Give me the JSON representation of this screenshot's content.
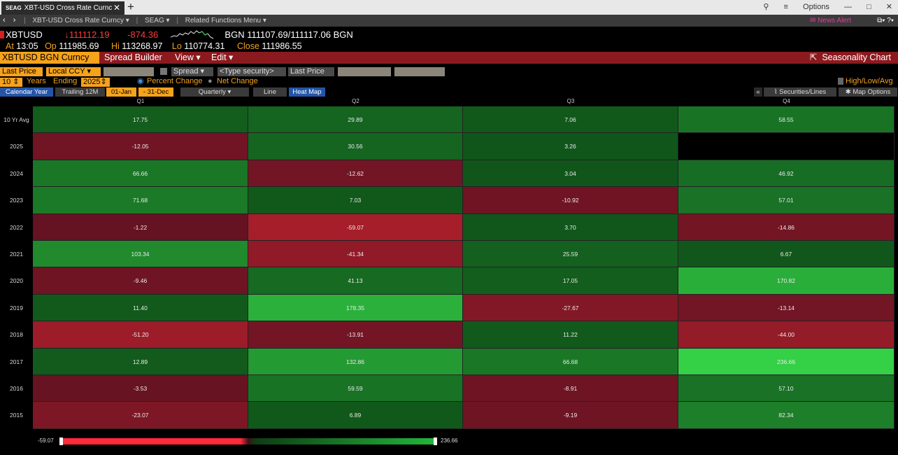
{
  "window": {
    "tab_code": "SEAG",
    "tab_title": "XBT-USD Cross Rate Curnc",
    "close_glyph": "✕",
    "newtab_glyph": "+",
    "options_label": "Options",
    "controls": [
      "—",
      "□",
      "✕"
    ]
  },
  "nav": {
    "arrows": "‹ ›",
    "crumbs": [
      "XBT-USD Cross Rate Curncy ▾",
      "SEAG ▾",
      "Related Functions Menu ▾"
    ],
    "news": "News Alert",
    "right": "⧉▾ ?▾"
  },
  "quote": {
    "ticker": "XBTUSD",
    "last": "↓111112.19",
    "change": "-874.36",
    "bgn_label": "BGN",
    "bid_ask": "111107.69/111117.06",
    "bgn_label2": "BGN",
    "at_label": "At",
    "time": "13:05",
    "op_label": "Op",
    "open": "111985.69",
    "hi_label": "Hi",
    "high": "113268.97",
    "lo_label": "Lo",
    "low": "110774.31",
    "close_label": "Close",
    "close": "111986.55"
  },
  "menu": {
    "title": "XBTUSD BGN Curncy",
    "items": [
      "Spread Builder",
      "View ▾",
      "Edit ▾"
    ],
    "seasonality": "Seasonality Chart"
  },
  "controls": {
    "field1": "Last Price",
    "field2": "Local CCY",
    "spread": "Spread",
    "type_security": "<Type security>",
    "field3": "Last Price",
    "years": "10",
    "years_label": "Years",
    "ending_label": "Ending",
    "ending_year": "2025",
    "percent_change": "Percent Change",
    "net_change": "Net Change",
    "high_low_avg": "High/Low/Avg"
  },
  "tabs": {
    "calendar_year": "Calendar Year",
    "trailing": "Trailing 12M",
    "from": "01-Jan",
    "to": "- 31-Dec",
    "period": "Quarterly ▾",
    "line": "Line",
    "heatmap": "Heat Map",
    "securities_lines": "Securities/Lines",
    "map_options": "Map Options"
  },
  "heatmap": {
    "columns": [
      "Q1",
      "Q2",
      "Q3",
      "Q4"
    ],
    "rows": [
      {
        "label": "10 Yr Avg",
        "values": [
          "17.75",
          "29.89",
          "7.06",
          "58.55"
        ]
      },
      {
        "label": "2025",
        "values": [
          "-12.05",
          "30.56",
          "3.26",
          ""
        ]
      },
      {
        "label": "2024",
        "values": [
          "66.66",
          "-12.62",
          "3.04",
          "46.92"
        ]
      },
      {
        "label": "2023",
        "values": [
          "71.68",
          "7.03",
          "-10.92",
          "57.01"
        ]
      },
      {
        "label": "2022",
        "values": [
          "-1.22",
          "-59.07",
          "3.70",
          "-14.86"
        ]
      },
      {
        "label": "2021",
        "values": [
          "103.34",
          "-41.34",
          "25.59",
          "6.67"
        ]
      },
      {
        "label": "2020",
        "values": [
          "-9.46",
          "41.13",
          "17.05",
          "170.82"
        ]
      },
      {
        "label": "2019",
        "values": [
          "11.40",
          "178.35",
          "-27.67",
          "-13.14"
        ]
      },
      {
        "label": "2018",
        "values": [
          "-51.20",
          "-13.91",
          "11.22",
          "-44.00"
        ]
      },
      {
        "label": "2017",
        "values": [
          "12.89",
          "132.86",
          "66.68",
          "236.66"
        ]
      },
      {
        "label": "2016",
        "values": [
          "-3.53",
          "59.59",
          "-8.91",
          "57.10"
        ]
      },
      {
        "label": "2015",
        "values": [
          "-23.07",
          "6.89",
          "-9.19",
          "82.34"
        ]
      }
    ]
  },
  "legend": {
    "min": "-59.07",
    "max": "236.66"
  },
  "colors": {
    "accent_orange": "#f5a21c",
    "menu_red": "#8b1a1f",
    "negative": "#7a1424",
    "positive": "#1a6b22",
    "positive_bright": "#33c548"
  }
}
